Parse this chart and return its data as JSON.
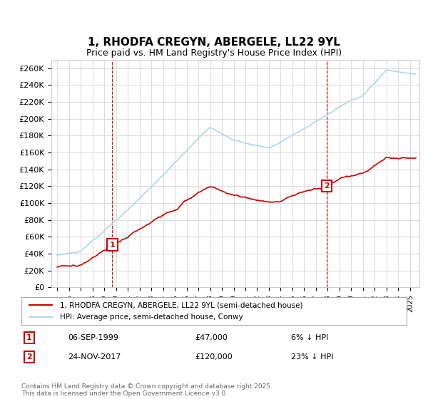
{
  "title": "1, RHODFA CREGYN, ABERGELE, LL22 9YL",
  "subtitle": "Price paid vs. HM Land Registry's House Price Index (HPI)",
  "legend_line1": "1, RHODFA CREGYN, ABERGELE, LL22 9YL (semi-detached house)",
  "legend_line2": "HPI: Average price, semi-detached house, Conwy",
  "sale1_label": "1",
  "sale1_date": "06-SEP-1999",
  "sale1_price": "£47,000",
  "sale1_hpi": "6% ↓ HPI",
  "sale2_label": "2",
  "sale2_date": "24-NOV-2017",
  "sale2_price": "£120,000",
  "sale2_hpi": "23% ↓ HPI",
  "footer": "Contains HM Land Registry data © Crown copyright and database right 2025.\nThis data is licensed under the Open Government Licence v3.0.",
  "hpi_color": "#add8e6",
  "price_color": "#cc0000",
  "sale_marker_color": "#cc0000",
  "vline_color": "#cc0000",
  "background_color": "#ffffff",
  "grid_color": "#dddddd",
  "ylim": [
    0,
    270000
  ],
  "yticks": [
    0,
    20000,
    40000,
    60000,
    80000,
    100000,
    120000,
    140000,
    160000,
    180000,
    200000,
    220000,
    240000,
    260000
  ],
  "sale1_year": 1999.68,
  "sale1_value": 47000,
  "sale2_year": 2017.9,
  "sale2_value": 120000
}
